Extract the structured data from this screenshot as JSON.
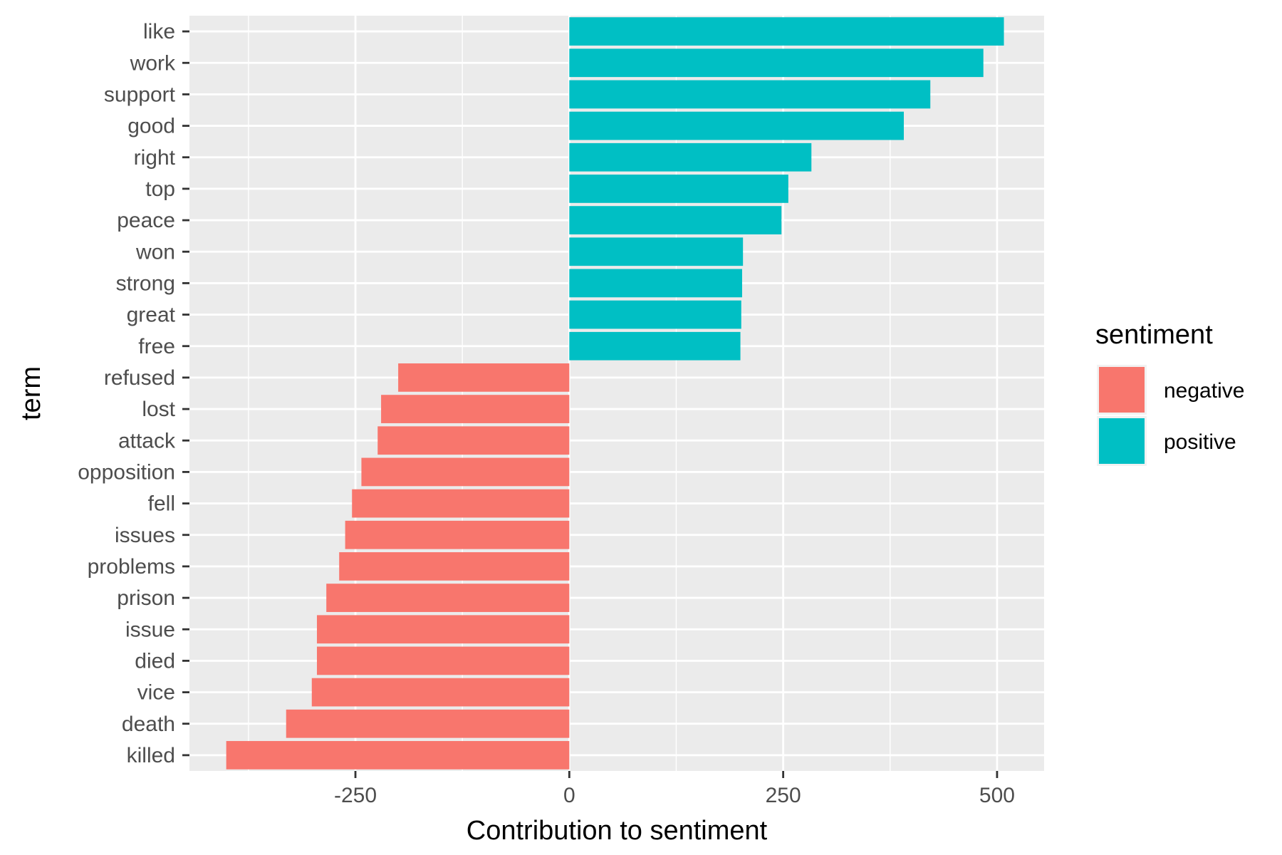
{
  "chart_data": {
    "type": "bar",
    "orientation": "horizontal",
    "xlabel": "Contribution to sentiment",
    "ylabel": "term",
    "xlim": [
      -444,
      555
    ],
    "x_ticks": [
      -250,
      0,
      250,
      500
    ],
    "x_tick_labels": [
      "-250",
      "0",
      "250",
      "500"
    ],
    "grid": true,
    "legend_position": "right",
    "categories": [
      "like",
      "work",
      "support",
      "good",
      "right",
      "top",
      "peace",
      "won",
      "strong",
      "great",
      "free",
      "refused",
      "lost",
      "attack",
      "opposition",
      "fell",
      "issues",
      "problems",
      "prison",
      "issue",
      "died",
      "vice",
      "death",
      "killed"
    ],
    "values": [
      508,
      484,
      422,
      391,
      283,
      256,
      248,
      203,
      202,
      201,
      200,
      -200,
      -220,
      -224,
      -243,
      -254,
      -262,
      -269,
      -284,
      -295,
      -295,
      -301,
      -331,
      -401
    ],
    "sentiment": [
      "positive",
      "positive",
      "positive",
      "positive",
      "positive",
      "positive",
      "positive",
      "positive",
      "positive",
      "positive",
      "positive",
      "negative",
      "negative",
      "negative",
      "negative",
      "negative",
      "negative",
      "negative",
      "negative",
      "negative",
      "negative",
      "negative",
      "negative",
      "negative"
    ],
    "legend": {
      "title": "sentiment",
      "entries": [
        {
          "label": "negative",
          "color": "#F8766D"
        },
        {
          "label": "positive",
          "color": "#00BFC4"
        }
      ]
    }
  },
  "colors": {
    "panel_background": "#EBEBEB",
    "grid": "#FFFFFF",
    "negative": "#F8766D",
    "positive": "#00BFC4"
  }
}
